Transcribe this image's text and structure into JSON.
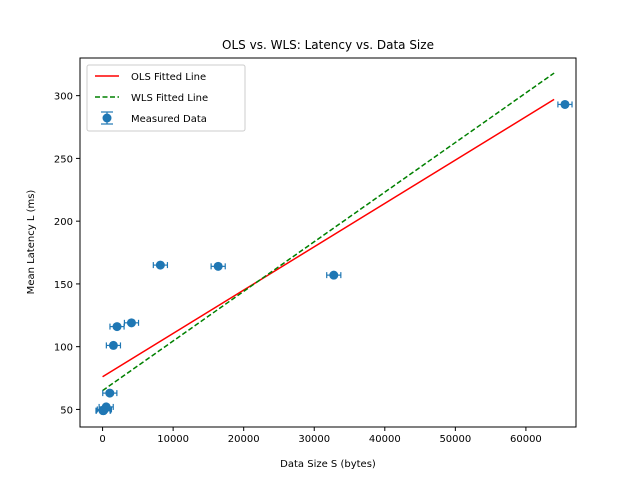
{
  "chart_data": {
    "type": "scatter",
    "title": "OLS vs. WLS: Latency vs. Data Size",
    "xlabel": "Data Size S (bytes)",
    "ylabel": "Mean Latency L (ms)",
    "xlim": [
      -3200,
      67100
    ],
    "ylim": [
      36,
      330
    ],
    "xticks": [
      0,
      10000,
      20000,
      30000,
      40000,
      50000,
      60000
    ],
    "yticks": [
      50,
      100,
      150,
      200,
      250,
      300
    ],
    "legend_position": "top-left",
    "grid": false,
    "colors": {
      "ols": "#ff0000",
      "wls": "#008000",
      "measured": "#1f77b4"
    },
    "measured": {
      "name": "Measured Data",
      "points": [
        {
          "x": 64,
          "y": 49,
          "err": 1.5
        },
        {
          "x": 128,
          "y": 49,
          "err": 1.5
        },
        {
          "x": 256,
          "y": 50,
          "err": 1.5
        },
        {
          "x": 512,
          "y": 52,
          "err": 1.5
        },
        {
          "x": 1024,
          "y": 63,
          "err": 1.5
        },
        {
          "x": 1536,
          "y": 101,
          "err": 1.5
        },
        {
          "x": 2048,
          "y": 116,
          "err": 1.5
        },
        {
          "x": 4096,
          "y": 119,
          "err": 1.5
        },
        {
          "x": 8192,
          "y": 165,
          "err": 1.5
        },
        {
          "x": 16384,
          "y": 164,
          "err": 1.5
        },
        {
          "x": 32768,
          "y": 157,
          "err": 1.5
        },
        {
          "x": 65536,
          "y": 293,
          "err": 1.5
        }
      ]
    },
    "ols": {
      "name": "OLS Fitted Line",
      "x": [
        0,
        64000
      ],
      "y": [
        76,
        297
      ]
    },
    "wls": {
      "name": "WLS Fitted Line",
      "x": [
        0,
        64000
      ],
      "y": [
        65,
        318
      ]
    }
  }
}
